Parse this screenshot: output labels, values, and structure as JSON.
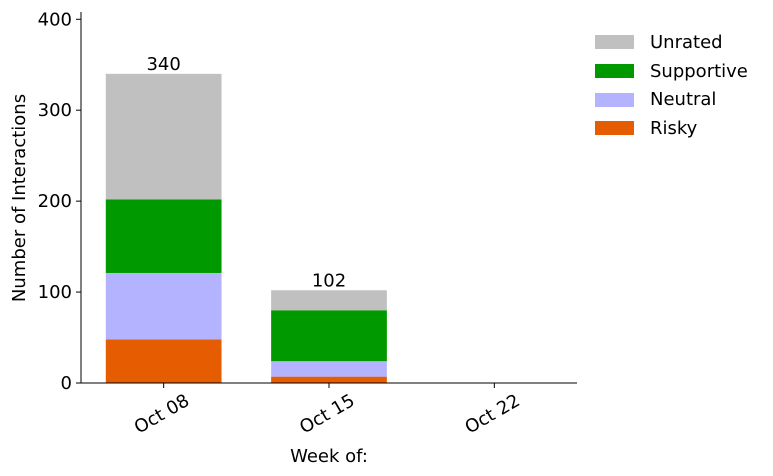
{
  "chart_data": {
    "type": "bar",
    "stacked": true,
    "categories": [
      "Oct 08",
      "Oct 15",
      "Oct 22"
    ],
    "series": [
      {
        "name": "Risky",
        "color": "#e65c00",
        "values": [
          48,
          7,
          0
        ]
      },
      {
        "name": "Neutral",
        "color": "#b3b3ff",
        "values": [
          73,
          17,
          0
        ]
      },
      {
        "name": "Supportive",
        "color": "#009900",
        "values": [
          81,
          56,
          0
        ]
      },
      {
        "name": "Unrated",
        "color": "#c0c0c0",
        "values": [
          138,
          22,
          0
        ]
      }
    ],
    "totals": [
      "340",
      "102",
      ""
    ],
    "xlabel": "Week of:",
    "ylabel": "Number of Interactions",
    "ylim": [
      0,
      408
    ],
    "yticks": [
      "0",
      "100",
      "200",
      "300",
      "400"
    ],
    "ytick_values": [
      0,
      100,
      200,
      300,
      400
    ],
    "legend": {
      "placement": "outside-top-right",
      "items": [
        {
          "label": "Unrated",
          "color": "#c0c0c0"
        },
        {
          "label": "Supportive",
          "color": "#009900"
        },
        {
          "label": "Neutral",
          "color": "#b3b3ff"
        },
        {
          "label": "Risky",
          "color": "#e65c00"
        }
      ]
    }
  }
}
